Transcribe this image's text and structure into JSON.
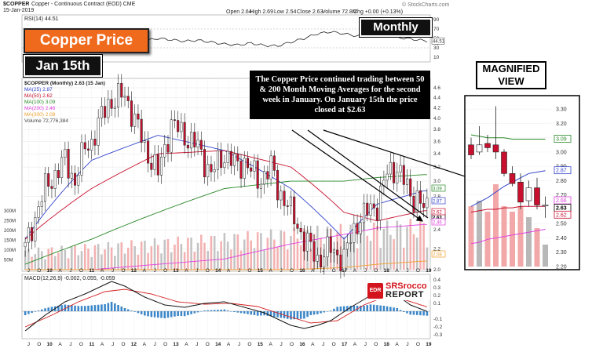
{
  "header": {
    "symbol": "$COPPER",
    "description": "Copper - Continuous Contract (EOD) CME",
    "date": "15-Jan-2019",
    "open_label": "Open 2.64",
    "high_label": "High 2.69",
    "low_label": "Low 2.54",
    "close_label": "Close 2.63",
    "volume_label": "Volume 72.8M",
    "chg_label": "Chg +0.00 (+0.13%)",
    "watermark": "© StockCharts.com",
    "rsi_label": "RSI(14) 44.51"
  },
  "callouts": {
    "title": "Copper Price",
    "date": "Jan 15th",
    "period": "Monthly",
    "magnified": "MAGNIFIED VIEW",
    "annotation": "The Copper Price continued trading between 50 & 200 Month Moving Averages for the second week in January.  On January 15th the price closed at $2.63",
    "logo_top": "SRSrocco",
    "logo_bottom": "REPORT"
  },
  "legend": {
    "title": "$COPPER (Monthly) 2.63 (15 Jan)",
    "ma25": "MA(25) 2.87",
    "ma50": "MA(50) 2.62",
    "ma100": "MA(100) 3.09",
    "ma200": "MA(200) 2.46",
    "ma300": "MA(300) 2.08",
    "volume": "Volume 72,776,384",
    "macd": "MACD(12,26,9) -0.002, 0.055, -0.059"
  },
  "colors": {
    "up": "#ffffff",
    "down": "#c8102e",
    "ma25": "#3344cc",
    "ma50": "#c8102e",
    "ma100": "#2a8a2a",
    "ma200": "#e040e0",
    "ma300": "#f0a030",
    "callout": "#f06a1e"
  },
  "chart_data": [
    {
      "type": "line",
      "title": "RSI(14) 44.51",
      "yticks": [
        10,
        30,
        40,
        50,
        70,
        90
      ],
      "ylim": [
        0,
        100
      ],
      "guides": [
        30,
        70
      ],
      "last_value": 44.51,
      "x": [
        0,
        4,
        8,
        12,
        16,
        20,
        24,
        28,
        32,
        36,
        40,
        44,
        48,
        52,
        56,
        60,
        64,
        68,
        72,
        76,
        80,
        84,
        88,
        92,
        96,
        100,
        104,
        108,
        112,
        117,
        121
      ],
      "values": [
        55,
        60,
        68,
        64,
        58,
        52,
        50,
        56,
        48,
        45,
        50,
        47,
        44,
        46,
        42,
        38,
        36,
        40,
        35,
        34,
        42,
        50,
        60,
        64,
        60,
        55,
        62,
        58,
        52,
        48,
        44.51
      ]
    },
    {
      "type": "candlestick",
      "title": "$COPPER (Monthly) 2.63 (15 Jan)",
      "ylim": [
        2.0,
        4.7
      ],
      "scale": "log",
      "yticks": [
        2.0,
        2.2,
        2.4,
        2.6,
        2.8,
        3.0,
        3.2,
        3.4,
        3.6,
        3.8,
        4.0,
        4.2,
        4.4,
        4.6
      ],
      "right_labels": [
        3.09,
        2.87,
        2.63,
        2.62,
        2.46,
        2.08
      ],
      "volume_ticks": [
        "50M",
        "100M",
        "150M",
        "200M",
        "250M",
        "300M"
      ],
      "x_axis_labels": [
        "J",
        "O",
        "10",
        "A",
        "J",
        "O",
        "11",
        "A",
        "J",
        "O",
        "12",
        "A",
        "J",
        "O",
        "13",
        "A",
        "J",
        "O",
        "14",
        "A",
        "J",
        "O",
        "15",
        "A",
        "J",
        "O",
        "16",
        "A",
        "J",
        "O",
        "17",
        "A",
        "J",
        "O",
        "18",
        "A",
        "J",
        "O",
        "19"
      ],
      "anchors": {
        "x_index": [
          0,
          6,
          12,
          15,
          18,
          20,
          25,
          30,
          36,
          40,
          44,
          48,
          52,
          56,
          60,
          64,
          66,
          70,
          74,
          76,
          79,
          80,
          84,
          88,
          92,
          96,
          100,
          103,
          106,
          109,
          112,
          114,
          116,
          118,
          120,
          121
        ],
        "close": [
          2.2,
          2.9,
          3.3,
          3.0,
          3.5,
          3.6,
          4.3,
          4.45,
          3.5,
          3.1,
          3.9,
          3.7,
          3.5,
          3.1,
          3.4,
          3.2,
          3.3,
          3.0,
          3.2,
          2.9,
          2.7,
          2.6,
          2.3,
          2.1,
          2.2,
          2.1,
          2.5,
          2.6,
          2.7,
          3.1,
          3.2,
          3.0,
          2.8,
          2.8,
          2.63,
          2.63
        ]
      },
      "ma_anchors": {
        "x_index": [
          0,
          20,
          40,
          60,
          80,
          96,
          106,
          120
        ],
        "ma25": [
          2.3,
          3.3,
          3.7,
          3.45,
          2.9,
          2.3,
          2.7,
          2.87
        ],
        "ma50": [
          2.3,
          2.9,
          3.4,
          3.45,
          3.2,
          2.6,
          2.5,
          2.62
        ],
        "ma100": [
          2.05,
          2.3,
          2.6,
          2.9,
          3.0,
          3.0,
          3.05,
          3.09
        ],
        "ma200": [
          2.0,
          2.0,
          2.05,
          2.1,
          2.25,
          2.35,
          2.42,
          2.46
        ],
        "ma300": [
          2.0,
          2.0,
          2.0,
          2.0,
          2.0,
          2.02,
          2.05,
          2.08
        ]
      }
    },
    {
      "type": "line",
      "title": "MACD(12,26,9) -0.002, 0.055, -0.059",
      "ylim": [
        -0.35,
        0.45
      ],
      "yticks": [
        0.4,
        0.3,
        0.2,
        0.1,
        -0.1,
        -0.2,
        -0.3
      ],
      "series": [
        {
          "name": "MACD",
          "x": [
            0,
            6,
            12,
            18,
            22,
            26,
            30,
            36,
            42,
            48,
            54,
            60,
            66,
            72,
            76,
            80,
            84,
            88,
            92,
            98,
            104,
            108,
            112,
            116,
            121
          ],
          "values": [
            -0.25,
            -0.05,
            0.12,
            0.22,
            0.3,
            0.38,
            0.32,
            0.18,
            0.08,
            0.05,
            0.1,
            0.12,
            0.05,
            -0.02,
            -0.1,
            -0.18,
            -0.22,
            -0.18,
            -0.12,
            0.05,
            0.2,
            0.25,
            0.2,
            0.08,
            -0.002
          ]
        },
        {
          "name": "Signal",
          "x": [
            0,
            8,
            16,
            24,
            30,
            38,
            46,
            54,
            62,
            70,
            78,
            86,
            94,
            102,
            108,
            114,
            121
          ],
          "values": [
            -0.2,
            -0.05,
            0.12,
            0.25,
            0.28,
            0.22,
            0.12,
            0.09,
            0.1,
            0.06,
            -0.05,
            -0.15,
            -0.12,
            0.08,
            0.18,
            0.15,
            0.055
          ]
        }
      ]
    },
    {
      "type": "candlestick",
      "title": "MAGNIFIED VIEW",
      "ylim": [
        2.2,
        3.35
      ],
      "yticks": [
        2.2,
        2.3,
        2.4,
        2.5,
        2.6,
        2.7,
        2.8,
        2.9,
        3.0,
        3.1,
        3.2,
        3.3
      ],
      "right_labels": [
        3.09,
        2.87,
        2.66,
        2.63,
        2.62
      ],
      "candles": [
        {
          "o": 3.05,
          "h": 3.1,
          "l": 2.95,
          "c": 2.98
        },
        {
          "o": 3.0,
          "h": 3.18,
          "l": 2.98,
          "c": 3.05
        },
        {
          "o": 3.06,
          "h": 3.12,
          "l": 3.0,
          "c": 3.03
        },
        {
          "o": 3.05,
          "h": 3.32,
          "l": 2.95,
          "c": 3.0
        },
        {
          "o": 3.0,
          "h": 3.02,
          "l": 2.83,
          "c": 2.85
        },
        {
          "o": 2.85,
          "h": 2.9,
          "l": 2.76,
          "c": 2.78
        },
        {
          "o": 2.79,
          "h": 2.85,
          "l": 2.6,
          "c": 2.65
        },
        {
          "o": 2.66,
          "h": 2.8,
          "l": 2.62,
          "c": 2.75
        },
        {
          "o": 2.75,
          "h": 2.82,
          "l": 2.6,
          "c": 2.63
        },
        {
          "o": 2.63,
          "h": 2.69,
          "l": 2.54,
          "c": 2.63
        }
      ]
    }
  ]
}
